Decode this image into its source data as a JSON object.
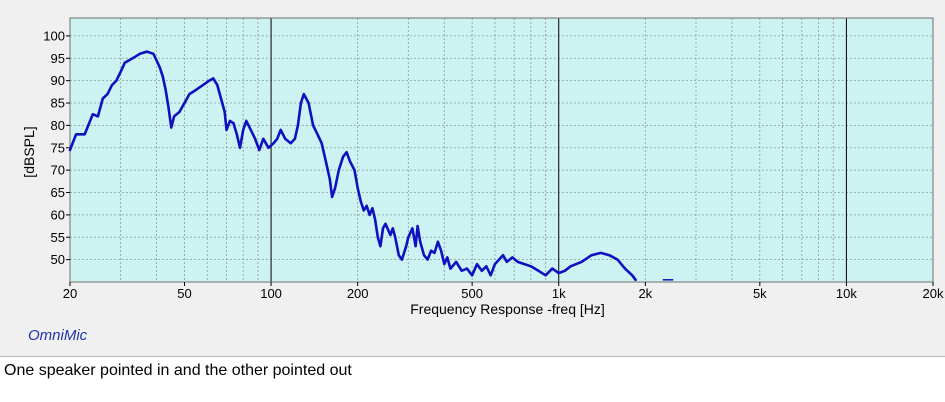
{
  "caption": "One speaker pointed in and the other pointed out",
  "watermark": "OmniMic",
  "colors": {
    "plot_background": "#ccf2f2",
    "trace": "#1010c0",
    "window": "#f0f0f0",
    "watermark": "#2233aa"
  },
  "chart_data": {
    "type": "line",
    "title": "",
    "xlabel": "Frequency Response -freq [Hz]",
    "ylabel": "[dBSPL]",
    "x_scale": "log",
    "xlim": [
      20,
      20000
    ],
    "ylim": [
      45,
      104
    ],
    "x_ticks": [
      {
        "value": 20,
        "label": "20"
      },
      {
        "value": 50,
        "label": "50"
      },
      {
        "value": 100,
        "label": "100"
      },
      {
        "value": 200,
        "label": "200"
      },
      {
        "value": 500,
        "label": "500"
      },
      {
        "value": 1000,
        "label": "1k"
      },
      {
        "value": 2000,
        "label": "2k"
      },
      {
        "value": 5000,
        "label": "5k"
      },
      {
        "value": 10000,
        "label": "10k"
      },
      {
        "value": 20000,
        "label": "20k"
      }
    ],
    "y_ticks": [
      50,
      55,
      60,
      65,
      70,
      75,
      80,
      85,
      90,
      95,
      100
    ],
    "grid": true,
    "series": [
      {
        "values": [
          [
            20,
            74.5
          ],
          [
            21,
            78
          ],
          [
            22.5,
            78
          ],
          [
            24,
            82.5
          ],
          [
            25,
            82
          ],
          [
            26,
            86
          ],
          [
            27,
            87
          ],
          [
            28,
            89
          ],
          [
            29,
            90
          ],
          [
            30,
            92
          ],
          [
            31,
            94
          ],
          [
            33,
            95
          ],
          [
            35,
            96
          ],
          [
            37,
            96.5
          ],
          [
            39,
            96
          ],
          [
            40,
            94.5
          ],
          [
            41,
            93
          ],
          [
            42,
            91
          ],
          [
            43,
            88
          ],
          [
            44,
            84
          ],
          [
            45,
            79.5
          ],
          [
            46,
            82
          ],
          [
            48,
            83
          ],
          [
            50,
            85
          ],
          [
            52,
            87
          ],
          [
            55,
            88
          ],
          [
            58,
            89
          ],
          [
            61,
            90
          ],
          [
            63,
            90.5
          ],
          [
            65,
            89
          ],
          [
            67,
            86
          ],
          [
            69,
            83
          ],
          [
            70,
            79
          ],
          [
            72,
            81
          ],
          [
            74,
            80.5
          ],
          [
            76,
            78
          ],
          [
            78,
            75
          ],
          [
            80,
            79
          ],
          [
            82,
            81
          ],
          [
            85,
            79
          ],
          [
            88,
            77
          ],
          [
            91,
            74.5
          ],
          [
            94,
            77
          ],
          [
            98,
            75
          ],
          [
            102,
            76
          ],
          [
            105,
            77
          ],
          [
            108,
            79
          ],
          [
            112,
            77
          ],
          [
            117,
            76
          ],
          [
            121,
            77
          ],
          [
            124,
            80
          ],
          [
            127,
            85
          ],
          [
            130,
            87
          ],
          [
            135,
            85
          ],
          [
            140,
            80
          ],
          [
            145,
            78
          ],
          [
            150,
            76
          ],
          [
            155,
            72
          ],
          [
            160,
            68
          ],
          [
            163,
            64
          ],
          [
            167,
            66
          ],
          [
            172,
            70
          ],
          [
            178,
            73
          ],
          [
            183,
            74
          ],
          [
            188,
            72
          ],
          [
            195,
            70
          ],
          [
            200,
            66
          ],
          [
            205,
            63
          ],
          [
            210,
            61
          ],
          [
            215,
            62
          ],
          [
            220,
            60
          ],
          [
            225,
            61.5
          ],
          [
            230,
            59
          ],
          [
            235,
            55
          ],
          [
            240,
            53
          ],
          [
            245,
            57
          ],
          [
            250,
            58
          ],
          [
            260,
            55.5
          ],
          [
            265,
            57
          ],
          [
            270,
            55
          ],
          [
            278,
            51
          ],
          [
            285,
            50
          ],
          [
            295,
            53
          ],
          [
            300,
            55
          ],
          [
            310,
            57
          ],
          [
            318,
            53
          ],
          [
            323,
            57.5
          ],
          [
            330,
            54
          ],
          [
            340,
            51
          ],
          [
            350,
            50
          ],
          [
            360,
            52
          ],
          [
            370,
            51.5
          ],
          [
            380,
            54
          ],
          [
            390,
            52
          ],
          [
            400,
            49
          ],
          [
            410,
            50.5
          ],
          [
            420,
            48
          ],
          [
            440,
            49.5
          ],
          [
            460,
            47.5
          ],
          [
            480,
            48
          ],
          [
            500,
            46.5
          ],
          [
            520,
            49
          ],
          [
            540,
            47.5
          ],
          [
            560,
            48.5
          ],
          [
            580,
            46.5
          ],
          [
            600,
            49
          ],
          [
            620,
            50
          ],
          [
            640,
            51
          ],
          [
            660,
            49.5
          ],
          [
            690,
            50.5
          ],
          [
            720,
            49.5
          ],
          [
            760,
            49
          ],
          [
            800,
            48.5
          ],
          [
            850,
            47.5
          ],
          [
            900,
            46.5
          ],
          [
            950,
            48
          ],
          [
            1000,
            47
          ],
          [
            1050,
            47.5
          ],
          [
            1100,
            48.5
          ],
          [
            1200,
            49.5
          ],
          [
            1300,
            51
          ],
          [
            1400,
            51.5
          ],
          [
            1500,
            51
          ],
          [
            1600,
            50
          ],
          [
            1700,
            48
          ],
          [
            1800,
            46.5
          ],
          [
            1850,
            45.5
          ]
        ]
      }
    ],
    "fragment": [
      [
        2300,
        45.5
      ],
      [
        2500,
        45.5
      ]
    ],
    "vertical_markers": [
      100,
      1000,
      10000
    ]
  }
}
